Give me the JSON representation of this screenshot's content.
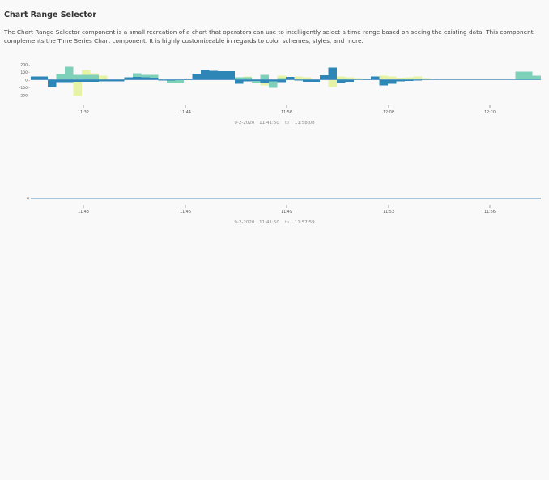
{
  "page": {
    "title": "Chart Range Selector",
    "description": "The Chart Range Selector component is a small recreation of a chart that operators can use to intelligently select a time range based on seeing the existing data. This component complements the Time Series Chart component. It is highly customizeable in regards to color schemes, styles, and more."
  },
  "colors": {
    "series_dark": "#2e86b7",
    "series_green": "#7fd0b9",
    "series_yellow": "#e6f3a6",
    "axis": "#777777",
    "baseline": "#4a90c0"
  },
  "selector1": {
    "y_ticks": [
      "200 -",
      "100 -",
      "0 -",
      "-100 -",
      "-200 -"
    ],
    "x_ticks": [
      "11:32",
      "11:44",
      "11:56",
      "12:08",
      "12:20"
    ],
    "range": {
      "date": "9-2-2020",
      "start": "11:41:50",
      "to": "to",
      "end": "11:58:08"
    }
  },
  "selector2": {
    "y_ticks": [
      "0"
    ],
    "x_ticks": [
      "11:43",
      "11:46",
      "11:49",
      "11:53",
      "11:56"
    ],
    "range": {
      "date": "9-2-2020",
      "start": "11:41:50",
      "to": "to",
      "end": "11:57:59"
    }
  },
  "chart_data": [
    {
      "type": "area",
      "x_domain": [
        "11:26",
        "12:26"
      ],
      "ylim": [
        -200,
        200
      ],
      "x": [
        0,
        1,
        2,
        3,
        4,
        5,
        6,
        7,
        8,
        9,
        10,
        11,
        12,
        13,
        14,
        15,
        16,
        17,
        18,
        19,
        20,
        21,
        22,
        23,
        24,
        25,
        26,
        27,
        28,
        29,
        30,
        31,
        32,
        33,
        34,
        35,
        36,
        37,
        38,
        39,
        40,
        41,
        42,
        43,
        44,
        45,
        46,
        47,
        48,
        49,
        50,
        51,
        52,
        53,
        54,
        55,
        56,
        57,
        58,
        59,
        60
      ],
      "series": [
        {
          "values": [
            40,
            40,
            -90,
            -30,
            -30,
            -25,
            -25,
            -25,
            -20,
            -20,
            -20,
            30,
            35,
            30,
            25,
            -10,
            -10,
            -5,
            15,
            75,
            120,
            110,
            105,
            105,
            -50,
            -20,
            -15,
            -40,
            -20,
            -30,
            35,
            -10,
            -25,
            -25,
            55,
            150,
            -40,
            -25,
            0,
            5,
            40,
            -70,
            -50,
            -20,
            -15,
            -10,
            0,
            0,
            0,
            0,
            0,
            0,
            0,
            0,
            0,
            0,
            0,
            0,
            0,
            0,
            0
          ]
        },
        {
          "values": [
            0,
            0,
            0,
            70,
            160,
            60,
            60,
            60,
            0,
            0,
            0,
            0,
            80,
            60,
            60,
            0,
            -40,
            -40,
            0,
            0,
            0,
            0,
            0,
            0,
            30,
            30,
            -40,
            60,
            -100,
            20,
            0,
            0,
            0,
            0,
            0,
            0,
            0,
            0,
            0,
            0,
            0,
            0,
            0,
            0,
            0,
            0,
            0,
            0,
            0,
            0,
            0,
            0,
            0,
            0,
            0,
            0,
            0,
            100,
            100,
            50,
            60
          ]
        },
        {
          "values": [
            0,
            0,
            0,
            0,
            0,
            -200,
            120,
            80,
            50,
            0,
            0,
            0,
            0,
            0,
            0,
            0,
            0,
            0,
            0,
            0,
            0,
            0,
            0,
            0,
            0,
            40,
            -30,
            -70,
            0,
            50,
            0,
            40,
            30,
            0,
            0,
            -90,
            40,
            30,
            20,
            0,
            20,
            50,
            40,
            25,
            30,
            40,
            20,
            10,
            0,
            0,
            0,
            0,
            0,
            0,
            0,
            0,
            0,
            0,
            0,
            0,
            0
          ]
        }
      ]
    },
    {
      "type": "line",
      "x_domain": [
        "11:41:50",
        "11:57:59"
      ],
      "ylim": [
        -1,
        1
      ],
      "x": [
        0,
        1
      ],
      "series": [
        {
          "values": [
            0,
            0
          ]
        }
      ]
    }
  ]
}
